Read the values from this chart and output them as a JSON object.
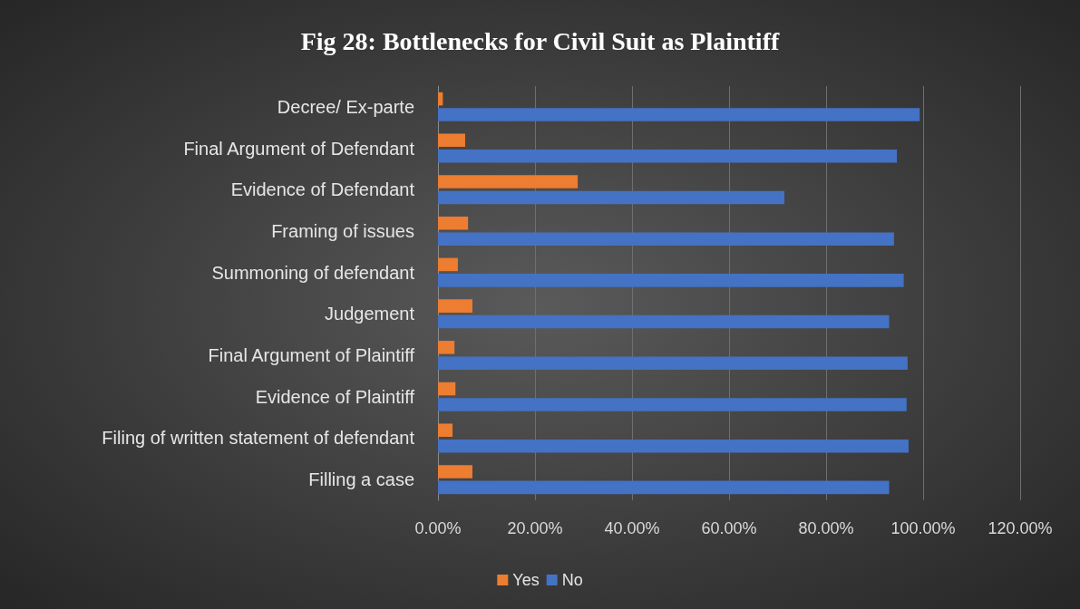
{
  "chart_data": {
    "type": "bar",
    "orientation": "horizontal",
    "title": "Fig 28: Bottlenecks for Civil Suit as Plaintiff",
    "categories": [
      "Decree/ Ex-parte",
      "Final Argument of Defendant",
      "Evidence of Defendant",
      "Framing of issues",
      "Summoning of defendant",
      "Judgement",
      "Final Argument of Plaintiff",
      "Evidence of Plaintiff",
      "Filing of written statement of defendant",
      "Filling a case"
    ],
    "series": [
      {
        "name": "Yes",
        "color": "#ed7d31",
        "values": [
          1,
          5.6,
          28.8,
          6.2,
          4.1,
          7.1,
          3.4,
          3.6,
          3,
          7.1
        ]
      },
      {
        "name": "No",
        "color": "#4472c4",
        "values": [
          99.3,
          94.6,
          71.4,
          94,
          96,
          93,
          96.8,
          96.6,
          97,
          93
        ]
      }
    ],
    "xlim": [
      0,
      120
    ],
    "xticks": [
      {
        "value": 0,
        "label": "0.00%"
      },
      {
        "value": 20,
        "label": "20.00%"
      },
      {
        "value": 40,
        "label": "40.00%"
      },
      {
        "value": 60,
        "label": "60.00%"
      },
      {
        "value": 80,
        "label": "80.00%"
      },
      {
        "value": 100,
        "label": "100.00%"
      },
      {
        "value": 120,
        "label": "120.00%"
      }
    ],
    "grid": "x",
    "legend": "bottom"
  }
}
